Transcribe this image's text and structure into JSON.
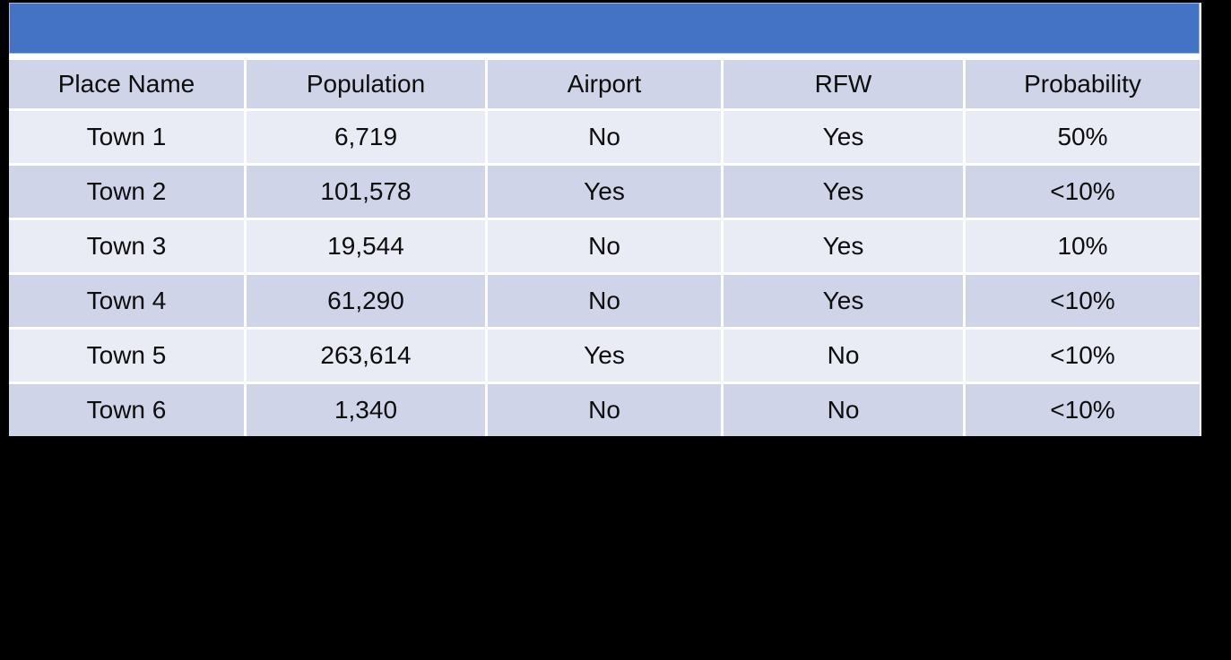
{
  "banner": {
    "text": "",
    "color": "#4472C4"
  },
  "colors": {
    "banner_blue": "#4472C4",
    "banner_border": "#a3b8e0",
    "header_row": "#cfd4e8",
    "dark_row": "#cfd4e8",
    "light_row": "#e9ebf5",
    "gridline": "#ffffff",
    "page_background": "#000000",
    "text": "#0d0d0d"
  },
  "chart_data": {
    "type": "table",
    "title": "",
    "columns": [
      "Place Name",
      "Population",
      "Airport",
      "RFW",
      "Probability"
    ],
    "rows": [
      [
        "Town 1",
        "6,719",
        "No",
        "Yes",
        "50%"
      ],
      [
        "Town 2",
        "101,578",
        "Yes",
        "Yes",
        "<10%"
      ],
      [
        "Town 3",
        "19,544",
        "No",
        "Yes",
        "10%"
      ],
      [
        "Town 4",
        "61,290",
        "No",
        "Yes",
        "<10%"
      ],
      [
        "Town 5",
        "263,614",
        "Yes",
        "No",
        "<10%"
      ],
      [
        "Town 6",
        "1,340",
        "No",
        "No",
        "<10%"
      ]
    ],
    "layout": {
      "banded_rows": true,
      "banner_row_empty": true,
      "alignment": "center"
    }
  }
}
